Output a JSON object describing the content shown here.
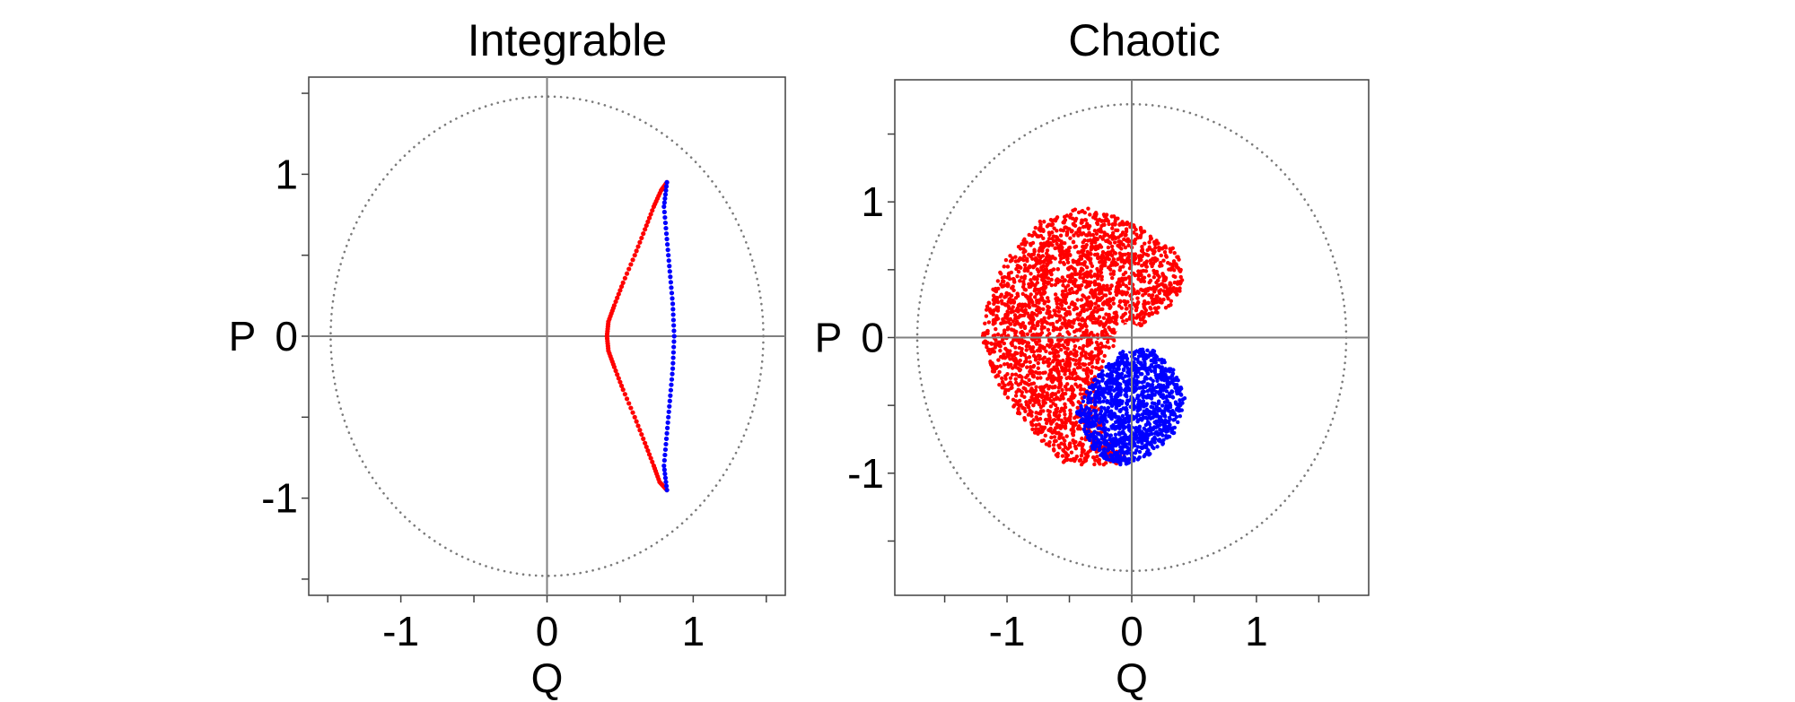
{
  "chart_data": [
    {
      "type": "scatter",
      "title": "Integrable",
      "xlabel": "Q",
      "ylabel": "P",
      "xlim": [
        -1.63,
        1.63
      ],
      "ylim": [
        -1.6,
        1.6
      ],
      "xticks": [
        -1,
        0,
        1
      ],
      "xtick_labels": [
        "-1",
        "0",
        "1"
      ],
      "yticks": [
        1,
        0,
        -1
      ],
      "ytick_labels": [
        "1",
        "0",
        "-1"
      ],
      "boundary_radius": 1.48,
      "series": [
        {
          "name": "red",
          "color": "#ff0000",
          "points": [
            [
              0.82,
              0.95
            ],
            [
              0.78,
              0.9
            ],
            [
              0.73,
              0.8
            ],
            [
              0.67,
              0.66
            ],
            [
              0.6,
              0.5
            ],
            [
              0.52,
              0.33
            ],
            [
              0.46,
              0.19
            ],
            [
              0.42,
              0.09
            ],
            [
              0.41,
              0.0
            ],
            [
              0.42,
              -0.09
            ],
            [
              0.46,
              -0.19
            ],
            [
              0.52,
              -0.33
            ],
            [
              0.6,
              -0.5
            ],
            [
              0.67,
              -0.66
            ],
            [
              0.73,
              -0.8
            ],
            [
              0.77,
              -0.9
            ],
            [
              0.82,
              -0.95
            ]
          ]
        },
        {
          "name": "blue",
          "color": "#0000ff",
          "points": [
            [
              0.82,
              0.95
            ],
            [
              0.8,
              0.8
            ],
            [
              0.82,
              0.6
            ],
            [
              0.84,
              0.4
            ],
            [
              0.86,
              0.2
            ],
            [
              0.87,
              0.0
            ],
            [
              0.86,
              -0.2
            ],
            [
              0.84,
              -0.4
            ],
            [
              0.82,
              -0.6
            ],
            [
              0.8,
              -0.8
            ],
            [
              0.82,
              -0.95
            ]
          ]
        }
      ]
    },
    {
      "type": "scatter",
      "title": "Chaotic",
      "xlabel": "Q",
      "ylabel": "P",
      "xlim": [
        -1.9,
        1.9
      ],
      "ylim": [
        -1.9,
        1.9
      ],
      "xticks": [
        -1,
        0,
        1
      ],
      "xtick_labels": [
        "-1",
        "0",
        "1"
      ],
      "yticks": [
        1,
        0,
        -1
      ],
      "ytick_labels": [
        "1",
        "0",
        "-1"
      ],
      "boundary_radius": 1.72,
      "hole_radius": 0.07,
      "series": [
        {
          "name": "red",
          "color": "#ff0000",
          "region": "upper and left lobes",
          "outline": [
            [
              -0.42,
              0.97
            ],
            [
              -0.15,
              0.9
            ],
            [
              0.1,
              0.8
            ],
            [
              0.35,
              0.65
            ],
            [
              0.43,
              0.45
            ],
            [
              0.35,
              0.25
            ],
            [
              0.15,
              0.15
            ],
            [
              0.05,
              0.05
            ],
            [
              -0.2,
              -0.1
            ],
            [
              -0.3,
              -0.4
            ],
            [
              -0.2,
              -0.75
            ],
            [
              0.0,
              -0.9
            ],
            [
              -0.3,
              -0.97
            ],
            [
              -0.55,
              -0.92
            ],
            [
              -0.85,
              -0.65
            ],
            [
              -1.1,
              -0.3
            ],
            [
              -1.2,
              0.0
            ],
            [
              -1.15,
              0.3
            ],
            [
              -1.0,
              0.6
            ],
            [
              -0.75,
              0.85
            ]
          ]
        },
        {
          "name": "blue",
          "color": "#0000ff",
          "region": "lower-right lobe",
          "outline": [
            [
              0.02,
              -0.05
            ],
            [
              0.2,
              -0.1
            ],
            [
              0.35,
              -0.25
            ],
            [
              0.43,
              -0.45
            ],
            [
              0.35,
              -0.7
            ],
            [
              0.15,
              -0.88
            ],
            [
              -0.1,
              -0.95
            ],
            [
              -0.3,
              -0.85
            ],
            [
              -0.45,
              -0.55
            ],
            [
              -0.3,
              -0.3
            ],
            [
              -0.1,
              -0.12
            ]
          ]
        }
      ]
    }
  ]
}
